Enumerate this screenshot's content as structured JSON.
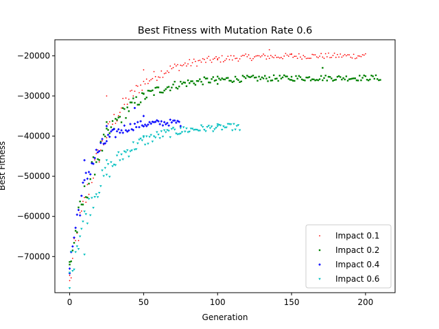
{
  "chart_data": {
    "type": "scatter",
    "title": "Best Fitness with Mutation Rate 0.6",
    "xlabel": "Generation",
    "ylabel": "Best Fitness",
    "xlim": [
      -10,
      220
    ],
    "ylim": [
      -79000,
      -16000
    ],
    "xticks": [
      0,
      50,
      100,
      150,
      200
    ],
    "yticks": [
      -70000,
      -60000,
      -50000,
      -40000,
      -30000,
      -20000
    ],
    "xtick_labels": [
      "0",
      "50",
      "100",
      "150",
      "200"
    ],
    "ytick_labels": [
      "−70000",
      "−60000",
      "−50000",
      "−40000",
      "−30000",
      "−20000"
    ],
    "grid": false,
    "legend_position": "lower-right",
    "series": [
      {
        "name": "Impact 0.1",
        "color": "#ff0000",
        "marker": "point",
        "curve": {
          "start": -76000,
          "end": -20000,
          "tau": 24
        },
        "n": 200,
        "points": [
          [
            0,
            -76000
          ],
          [
            25,
            -30000
          ],
          [
            50,
            -23500
          ],
          [
            100,
            -21000
          ],
          [
            135,
            -18500
          ],
          [
            150,
            -19500
          ],
          [
            200,
            -19500
          ]
        ]
      },
      {
        "name": "Impact 0.2",
        "color": "#008000",
        "marker": "square",
        "curve": {
          "start": -72000,
          "end": -25500,
          "tau": 22
        },
        "n": 210,
        "points": [
          [
            0,
            -72000
          ],
          [
            25,
            -36500
          ],
          [
            50,
            -29500
          ],
          [
            100,
            -27000
          ],
          [
            150,
            -26000
          ],
          [
            171,
            -23000
          ],
          [
            210,
            -26000
          ]
        ]
      },
      {
        "name": "Impact 0.4",
        "color": "#0000ff",
        "marker": "plus",
        "curve": {
          "start": -73000,
          "end": -36500,
          "tau": 12
        },
        "n": 75,
        "points": [
          [
            0,
            -73000
          ],
          [
            10,
            -46000
          ],
          [
            25,
            -37500
          ],
          [
            44,
            -33000
          ],
          [
            50,
            -35000
          ],
          [
            75,
            -37500
          ]
        ]
      },
      {
        "name": "Impact 0.6",
        "color": "#00bfbf",
        "marker": "triangle_down",
        "curve": {
          "start": -74000,
          "end": -37500,
          "tau": 22
        },
        "n": 115,
        "points": [
          [
            0,
            -74000
          ],
          [
            10,
            -69500
          ],
          [
            25,
            -46000
          ],
          [
            50,
            -40000
          ],
          [
            75,
            -38000
          ],
          [
            100,
            -37500
          ],
          [
            115,
            -38500
          ]
        ]
      }
    ]
  }
}
